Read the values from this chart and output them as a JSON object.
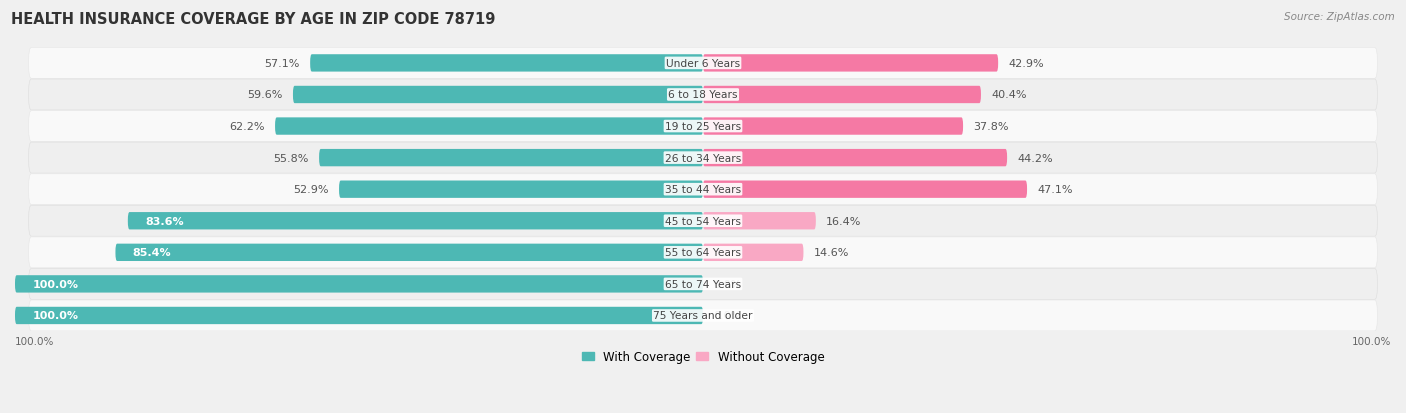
{
  "title": "HEALTH INSURANCE COVERAGE BY AGE IN ZIP CODE 78719",
  "source": "Source: ZipAtlas.com",
  "categories": [
    "Under 6 Years",
    "6 to 18 Years",
    "19 to 25 Years",
    "26 to 34 Years",
    "35 to 44 Years",
    "45 to 54 Years",
    "55 to 64 Years",
    "65 to 74 Years",
    "75 Years and older"
  ],
  "with_coverage": [
    57.1,
    59.6,
    62.2,
    55.8,
    52.9,
    83.6,
    85.4,
    100.0,
    100.0
  ],
  "without_coverage": [
    42.9,
    40.4,
    37.8,
    44.2,
    47.1,
    16.4,
    14.6,
    0.0,
    0.0
  ],
  "color_with": "#4db8b4",
  "color_without": "#f579a4",
  "color_without_light": "#f9a8c4",
  "bg_color": "#f0f0f0",
  "row_bg": "#f8f8f8",
  "title_fontsize": 10.5,
  "label_fontsize": 8.0,
  "tick_fontsize": 7.5,
  "legend_fontsize": 8.5,
  "source_fontsize": 7.5,
  "inside_label_threshold": 65
}
